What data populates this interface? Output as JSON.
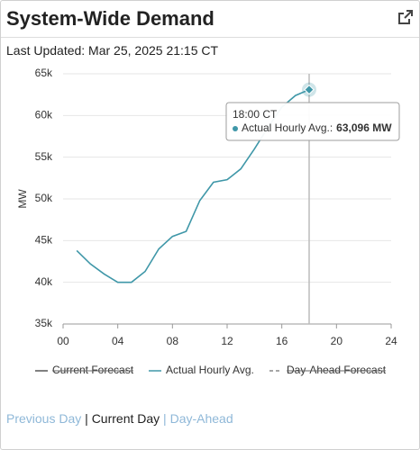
{
  "header": {
    "title": "System-Wide Demand",
    "updated": "Last Updated: Mar 25, 2025 21:15 CT"
  },
  "chart_data": {
    "type": "line",
    "ylabel": "MW",
    "x": [
      1,
      2,
      3,
      4,
      5,
      6,
      7,
      8,
      9,
      10,
      11,
      12,
      13,
      14,
      15,
      16,
      17,
      18
    ],
    "series": [
      {
        "name": "Current Forecast",
        "color": "#555555",
        "hidden": true,
        "values": [
          null,
          null,
          null,
          null,
          null,
          null,
          null,
          null,
          null,
          null,
          null,
          null,
          null,
          null,
          null,
          null,
          null,
          null
        ]
      },
      {
        "name": "Actual Hourly Avg.",
        "color": "#3f97a8",
        "values": [
          43800,
          42200,
          41000,
          40000,
          40000,
          41300,
          44000,
          45500,
          46100,
          49800,
          52000,
          52300,
          53600,
          56000,
          58600,
          61000,
          62400,
          63096
        ]
      },
      {
        "name": "Day-Ahead Forecast",
        "color": "#888888",
        "dashed": true,
        "hidden": true,
        "values": [
          null,
          null,
          null,
          null,
          null,
          null,
          null,
          null,
          null,
          null,
          null,
          null,
          null,
          null,
          null,
          null,
          null,
          null
        ]
      }
    ],
    "xlim": [
      0,
      24
    ],
    "xticks": [
      {
        "value": 0,
        "label": "00"
      },
      {
        "value": 4,
        "label": "04"
      },
      {
        "value": 8,
        "label": "08"
      },
      12,
      16,
      20,
      24
    ],
    "ylim": [
      35000,
      65000
    ],
    "yticks": [
      {
        "value": 35000,
        "label": "35k"
      },
      {
        "value": 40000,
        "label": "40k"
      },
      {
        "value": 45000,
        "label": "45k"
      },
      {
        "value": 50000,
        "label": "50k"
      },
      {
        "value": 55000,
        "label": "55k"
      },
      {
        "value": 60000,
        "label": "60k"
      },
      {
        "value": 65000,
        "label": "65k"
      }
    ],
    "grid": true,
    "tooltip": {
      "time": "18:00 CT",
      "series": "Actual Hourly Avg.:",
      "value": "63,096 MW"
    }
  },
  "nav": {
    "items": [
      "Previous Day",
      "Current Day",
      "Day-Ahead"
    ],
    "separator": "|"
  }
}
